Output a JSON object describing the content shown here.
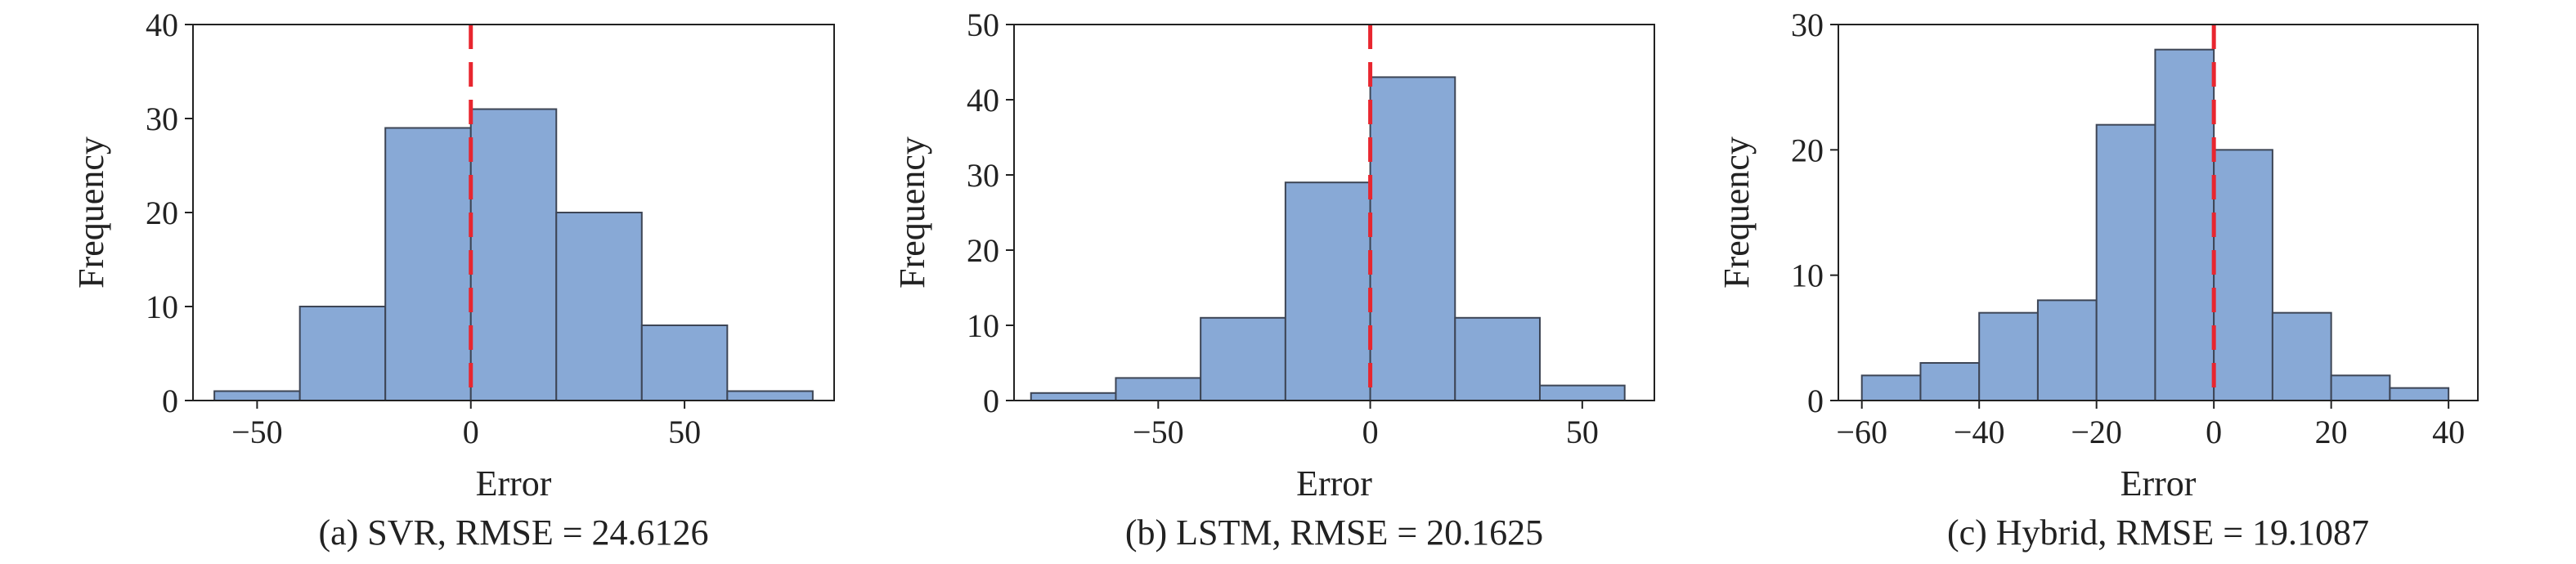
{
  "figure": {
    "style": {
      "bar_fill": "#88a9d6",
      "bar_stroke": "#3d4555",
      "zero_line": "#e8262f",
      "axis_color": "#222222"
    }
  },
  "chart_data": [
    {
      "type": "bar",
      "caption": "(a) SVR, RMSE = 24.6126",
      "xlabel": "Error",
      "ylabel": "Frequency",
      "xlim": [
        -65,
        85
      ],
      "ylim": [
        0,
        40
      ],
      "xticks": [
        -50,
        0,
        50
      ],
      "yticks": [
        0,
        10,
        20,
        30,
        40
      ],
      "bin_edges": [
        -60,
        -40,
        -20,
        0,
        20,
        40,
        60,
        80
      ],
      "values": [
        1,
        10,
        29,
        31,
        20,
        8,
        1
      ],
      "reference_line_x": 0
    },
    {
      "type": "bar",
      "caption": "(b) LSTM, RMSE = 20.1625",
      "xlabel": "Error",
      "ylabel": "Frequency",
      "xlim": [
        -84,
        67
      ],
      "ylim": [
        0,
        50
      ],
      "xticks": [
        -50,
        0,
        50
      ],
      "yticks": [
        0,
        10,
        20,
        30,
        40,
        50
      ],
      "bin_edges": [
        -80,
        -60,
        -40,
        -20,
        0,
        20,
        40,
        60
      ],
      "values": [
        1,
        3,
        11,
        29,
        43,
        11,
        2
      ],
      "reference_line_x": 0
    },
    {
      "type": "bar",
      "caption": "(c) Hybrid, RMSE = 19.1087",
      "xlabel": "Error",
      "ylabel": "Frequency",
      "xlim": [
        -64,
        45
      ],
      "ylim": [
        0,
        30
      ],
      "xticks": [
        -60,
        -40,
        -20,
        0,
        20,
        40
      ],
      "yticks": [
        0,
        10,
        20,
        30
      ],
      "bin_edges": [
        -60,
        -50,
        -40,
        -30,
        -20,
        -10,
        0,
        10,
        20,
        30,
        40
      ],
      "values": [
        2,
        3,
        7,
        8,
        22,
        28,
        20,
        7,
        2,
        1
      ],
      "reference_line_x": 0
    }
  ]
}
